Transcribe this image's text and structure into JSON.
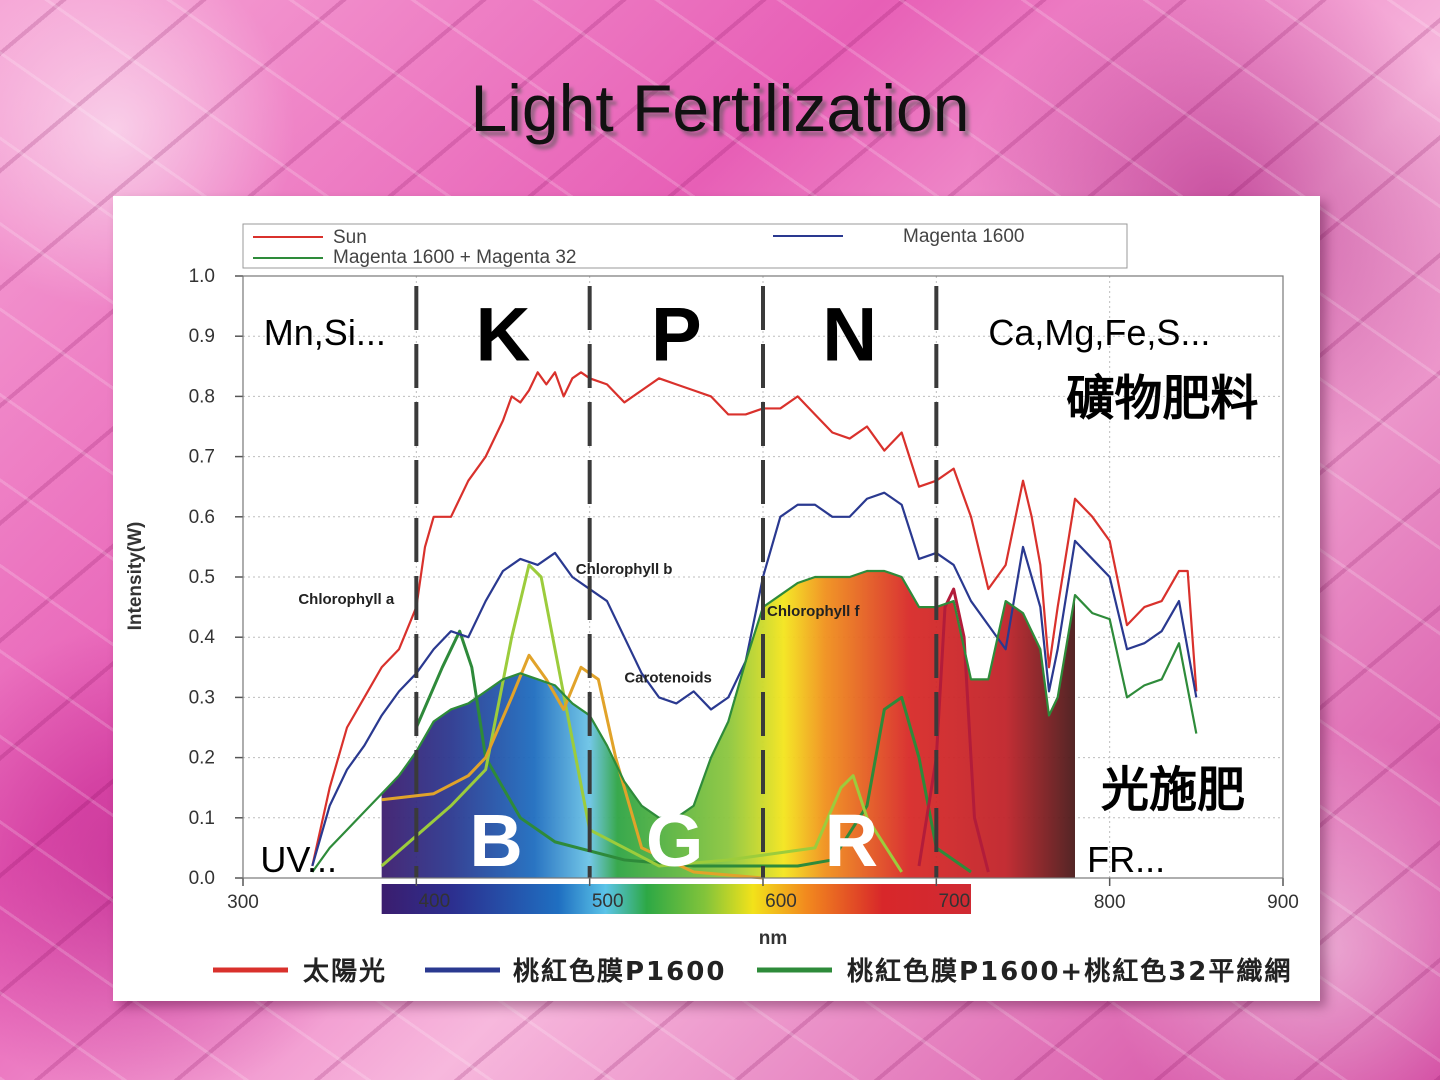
{
  "slide": {
    "title": "Light Fertilization"
  },
  "colors": {
    "sun": "#d9312c",
    "magenta1600": "#2a3990",
    "magenta_combo": "#2e8b3a",
    "panel_bg": "#ffffff"
  },
  "chart_data": {
    "type": "line",
    "xlabel": "nm",
    "ylabel": "Intensity(W)",
    "xlim": [
      300,
      900
    ],
    "ylim": [
      0.0,
      1.0
    ],
    "x_ticks": [
      "300",
      "400",
      "500",
      "600",
      "700",
      "800",
      "900"
    ],
    "y_ticks": [
      "0.0",
      "0.1",
      "0.2",
      "0.3",
      "0.4",
      "0.5",
      "0.6",
      "0.7",
      "0.8",
      "0.9",
      "1.0"
    ],
    "grid": true,
    "legend": {
      "placement": "top",
      "entries": [
        "Sun",
        "Magenta 1600 + Magenta 32",
        "Magenta 1600"
      ]
    },
    "series": [
      {
        "name": "Sun",
        "color": "#d9312c",
        "x": [
          340,
          350,
          360,
          370,
          380,
          390,
          400,
          405,
          410,
          420,
          430,
          440,
          450,
          455,
          460,
          465,
          470,
          475,
          480,
          485,
          490,
          495,
          500,
          510,
          520,
          530,
          540,
          550,
          560,
          570,
          580,
          590,
          600,
          610,
          620,
          630,
          640,
          650,
          660,
          670,
          680,
          690,
          700,
          710,
          720,
          730,
          740,
          750,
          755,
          760,
          765,
          770,
          780,
          790,
          800,
          810,
          820,
          830,
          840,
          845,
          850
        ],
        "y": [
          0.02,
          0.15,
          0.25,
          0.3,
          0.35,
          0.38,
          0.45,
          0.55,
          0.6,
          0.6,
          0.66,
          0.7,
          0.76,
          0.8,
          0.79,
          0.81,
          0.84,
          0.82,
          0.84,
          0.8,
          0.83,
          0.84,
          0.83,
          0.82,
          0.79,
          0.81,
          0.83,
          0.82,
          0.81,
          0.8,
          0.77,
          0.77,
          0.78,
          0.78,
          0.8,
          0.77,
          0.74,
          0.73,
          0.75,
          0.71,
          0.74,
          0.65,
          0.66,
          0.68,
          0.6,
          0.48,
          0.52,
          0.66,
          0.6,
          0.52,
          0.35,
          0.45,
          0.63,
          0.6,
          0.56,
          0.42,
          0.45,
          0.46,
          0.51,
          0.51,
          0.31
        ]
      },
      {
        "name": "Magenta 1600",
        "color": "#2a3990",
        "x": [
          340,
          350,
          360,
          370,
          380,
          390,
          400,
          410,
          420,
          430,
          440,
          450,
          460,
          470,
          480,
          490,
          500,
          510,
          520,
          530,
          540,
          550,
          560,
          570,
          580,
          590,
          600,
          610,
          620,
          630,
          640,
          650,
          660,
          670,
          680,
          690,
          700,
          710,
          720,
          730,
          740,
          750,
          760,
          765,
          770,
          780,
          790,
          800,
          810,
          820,
          830,
          840,
          850
        ],
        "y": [
          0.02,
          0.12,
          0.18,
          0.22,
          0.27,
          0.31,
          0.34,
          0.38,
          0.41,
          0.4,
          0.46,
          0.51,
          0.53,
          0.52,
          0.54,
          0.5,
          0.48,
          0.46,
          0.4,
          0.34,
          0.3,
          0.29,
          0.31,
          0.28,
          0.3,
          0.36,
          0.5,
          0.6,
          0.62,
          0.62,
          0.6,
          0.6,
          0.63,
          0.64,
          0.62,
          0.53,
          0.54,
          0.52,
          0.46,
          0.42,
          0.38,
          0.55,
          0.45,
          0.31,
          0.38,
          0.56,
          0.53,
          0.5,
          0.38,
          0.39,
          0.41,
          0.46,
          0.3
        ]
      },
      {
        "name": "Magenta 1600 + Magenta 32",
        "color": "#2e8b3a",
        "x": [
          340,
          350,
          360,
          370,
          380,
          390,
          400,
          410,
          420,
          430,
          440,
          450,
          460,
          470,
          480,
          490,
          500,
          510,
          520,
          530,
          540,
          550,
          560,
          570,
          580,
          590,
          600,
          610,
          620,
          630,
          640,
          650,
          660,
          670,
          680,
          690,
          700,
          710,
          720,
          730,
          740,
          750,
          760,
          765,
          770,
          780,
          790,
          800,
          810,
          820,
          830,
          840,
          850
        ],
        "y": [
          0.01,
          0.05,
          0.08,
          0.11,
          0.14,
          0.17,
          0.21,
          0.26,
          0.28,
          0.29,
          0.31,
          0.33,
          0.34,
          0.33,
          0.32,
          0.29,
          0.27,
          0.22,
          0.16,
          0.12,
          0.1,
          0.1,
          0.12,
          0.2,
          0.26,
          0.36,
          0.45,
          0.47,
          0.49,
          0.5,
          0.5,
          0.5,
          0.51,
          0.51,
          0.5,
          0.45,
          0.45,
          0.46,
          0.33,
          0.33,
          0.46,
          0.44,
          0.38,
          0.27,
          0.3,
          0.47,
          0.44,
          0.43,
          0.3,
          0.32,
          0.33,
          0.39,
          0.24
        ]
      }
    ],
    "annotations": [
      "Chlorophyll a",
      "Chlorophyll b",
      "Carotenoids",
      "Chlorophyll f"
    ],
    "spectrum_bar_ticks": [
      "400",
      "500",
      "600",
      "700"
    ],
    "bands": [
      {
        "region": "UV...",
        "upper": "Mn,Si...",
        "lower": "UV..."
      },
      {
        "region": "B",
        "upper": "K",
        "lower": "B"
      },
      {
        "region": "G",
        "upper": "P",
        "lower": "G"
      },
      {
        "region": "R",
        "upper": "N",
        "lower": "R"
      },
      {
        "region": "FR...",
        "upper": "Ca,Mg,Fe,S...",
        "lower": "FR..."
      }
    ],
    "right_labels": {
      "mineral": "礦物肥料",
      "light": "光施肥"
    },
    "bottom_legend": [
      "太陽光",
      "桃紅色膜P1600",
      "桃紅色膜P1600+桃紅色32平織網"
    ]
  }
}
